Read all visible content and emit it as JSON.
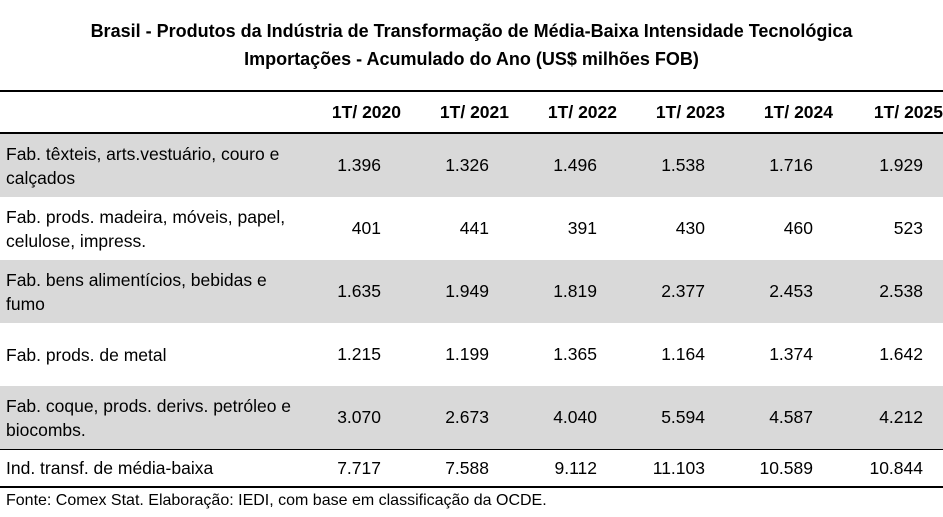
{
  "chart_data": {
    "type": "table",
    "title": "Brasil - Produtos da Indústria de Transformação de Média-Baixa Intensidade Tecnológica",
    "subtitle": "Importações - Acumulado do Ano (US$ milhões FOB)",
    "columns": [
      "1T/ 2020",
      "1T/ 2021",
      "1T/ 2022",
      "1T/ 2023",
      "1T/ 2024",
      "1T/ 2025"
    ],
    "rows": [
      {
        "label": "Fab. têxteis, arts.vestuário, couro e calçados",
        "values": [
          "1.396",
          "1.326",
          "1.496",
          "1.538",
          "1.716",
          "1.929"
        ],
        "shaded": true
      },
      {
        "label": "Fab. prods. madeira, móveis, papel, celulose, impress.",
        "values": [
          "401",
          "441",
          "391",
          "430",
          "460",
          "523"
        ],
        "shaded": false
      },
      {
        "label": "Fab. bens alimentícios, bebidas e fumo",
        "values": [
          "1.635",
          "1.949",
          "1.819",
          "2.377",
          "2.453",
          "2.538"
        ],
        "shaded": true
      },
      {
        "label": "Fab. prods. de metal",
        "values": [
          "1.215",
          "1.199",
          "1.365",
          "1.164",
          "1.374",
          "1.642"
        ],
        "shaded": false
      },
      {
        "label": "Fab. coque, prods. derivs. petróleo e biocombs.",
        "values": [
          "3.070",
          "2.673",
          "4.040",
          "5.594",
          "4.587",
          "4.212"
        ],
        "shaded": true
      }
    ],
    "total": {
      "label": "Ind. transf. de média-baixa",
      "values": [
        "7.717",
        "7.588",
        "9.112",
        "11.103",
        "10.589",
        "10.844"
      ]
    },
    "source": "Fonte: Comex Stat. Elaboração: IEDI, com base em classificação da OCDE.",
    "shade_color": "#d9d9d9"
  }
}
